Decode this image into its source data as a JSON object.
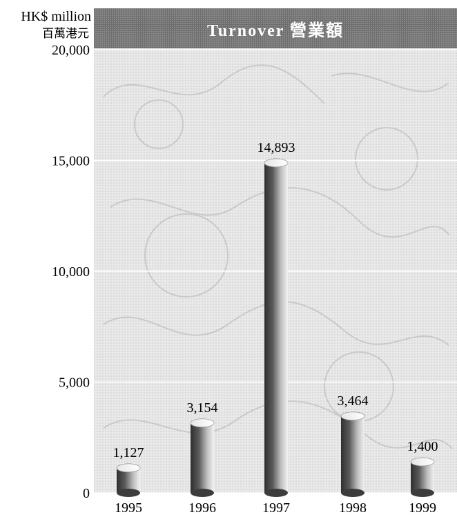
{
  "chart_data": {
    "type": "bar",
    "title": "Turnover 營業額",
    "ylabel": "HK$ million",
    "ylabel_secondary": "百萬港元",
    "categories": [
      "1995",
      "1996",
      "1997",
      "1998",
      "1999"
    ],
    "values": [
      1127,
      3154,
      14893,
      3464,
      1400
    ],
    "value_labels": [
      "1,127",
      "3,154",
      "14,893",
      "3,464",
      "1,400"
    ],
    "ylim": [
      0,
      20000
    ],
    "yticks": [
      0,
      5000,
      10000,
      15000,
      20000
    ],
    "ytick_labels": [
      "0",
      "5,000",
      "10,000",
      "15,000",
      "20,000"
    ],
    "grid": true,
    "bar_style": "3d-cylinder",
    "colors": {
      "title_band": "#6e6e6e",
      "background": "#e9e9e9",
      "pattern": "#bdbdbd",
      "bar_dark": "#2f2f2f",
      "bar_light": "#f2f2f2"
    }
  }
}
